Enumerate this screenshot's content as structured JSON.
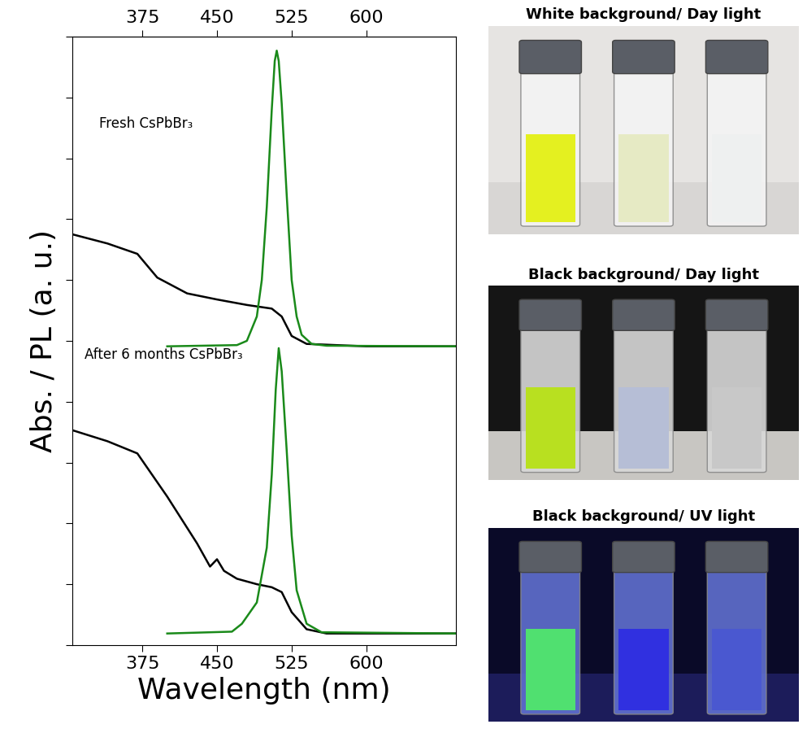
{
  "chart_data": {
    "type": "line",
    "xlabel": "Wavelength (nm)",
    "ylabel": "Abs. / PL (a. u.)",
    "xlim": [
      305,
      690
    ],
    "xticks": [
      375,
      450,
      525,
      600
    ],
    "ylim": [
      0,
      10
    ],
    "yticks": [
      0,
      1,
      2,
      3,
      4,
      5,
      6,
      7,
      8,
      9,
      10
    ],
    "tick_labels": "x",
    "annotations": [
      "Fresh CsPbBr₃",
      "After 6 months CsPbBr₃"
    ],
    "series": [
      {
        "color": "#000000",
        "x": [
          305,
          340,
          370,
          390,
          420,
          450,
          480,
          505,
          515,
          525,
          540,
          600,
          690
        ],
        "values": [
          6.75,
          6.6,
          6.43,
          6.04,
          5.78,
          5.68,
          5.59,
          5.53,
          5.4,
          5.08,
          4.95,
          4.91,
          4.91
        ]
      },
      {
        "color": "#1a8a1a",
        "x": [
          400,
          470,
          480,
          490,
          495,
          500,
          505,
          508,
          510,
          512,
          515,
          520,
          525,
          530,
          535,
          545,
          560,
          690
        ],
        "values": [
          4.91,
          4.93,
          5.0,
          5.4,
          6.0,
          7.2,
          8.8,
          9.6,
          9.77,
          9.6,
          8.9,
          7.4,
          6.0,
          5.4,
          5.1,
          4.95,
          4.92,
          4.91
        ]
      },
      {
        "color": "#000000",
        "x": [
          305,
          340,
          370,
          400,
          430,
          443,
          450,
          457,
          470,
          490,
          505,
          515,
          525,
          540,
          560,
          690
        ],
        "values": [
          3.53,
          3.35,
          3.15,
          2.44,
          1.67,
          1.29,
          1.41,
          1.22,
          1.09,
          1.0,
          0.95,
          0.87,
          0.54,
          0.26,
          0.19,
          0.19
        ]
      },
      {
        "color": "#1a8a1a",
        "x": [
          400,
          465,
          475,
          490,
          500,
          505,
          509,
          512,
          515,
          520,
          525,
          530,
          540,
          555,
          690
        ],
        "values": [
          0.19,
          0.22,
          0.35,
          0.7,
          1.6,
          2.8,
          4.2,
          4.88,
          4.5,
          3.2,
          1.8,
          0.9,
          0.35,
          0.21,
          0.19
        ]
      }
    ]
  },
  "panels": [
    {
      "title": "White background/ Day light"
    },
    {
      "title": "Black background/ Day light"
    },
    {
      "title": "Black background/ UV light"
    }
  ]
}
